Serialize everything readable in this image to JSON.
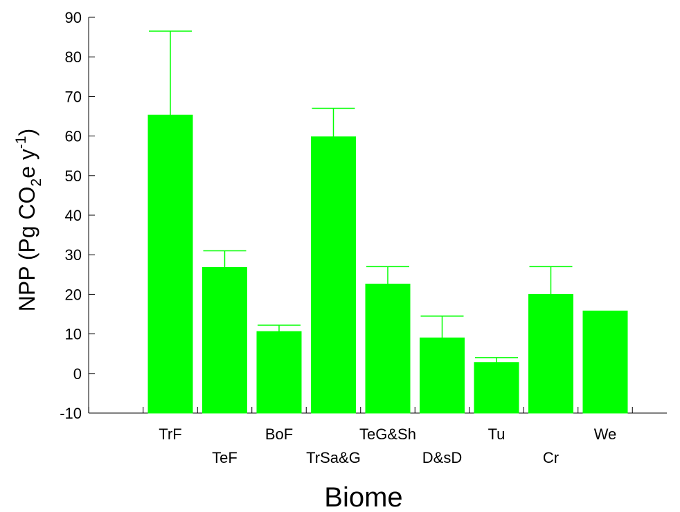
{
  "chart_data": {
    "type": "bar",
    "xlabel": "Biome",
    "ylabel": {
      "base": "NPP (Pg CO",
      "sub": "2",
      "mid": "e y",
      "sup": "-1",
      "end": ")"
    },
    "ylim": [
      -10,
      90
    ],
    "yticks": [
      -10,
      0,
      10,
      20,
      30,
      40,
      50,
      60,
      70,
      80,
      90
    ],
    "categories": [
      "TrF",
      "TeF",
      "BoF",
      "TrSa&G",
      "TeG&Sh",
      "D&sD",
      "Tu",
      "Cr",
      "We"
    ],
    "values": [
      65.3,
      26.8,
      10.6,
      59.8,
      22.6,
      9.0,
      2.8,
      20.0,
      15.8
    ],
    "error_upper": [
      86.5,
      31.0,
      12.2,
      67.0,
      27.0,
      14.5,
      4.0,
      27.0,
      null
    ],
    "bar_color": "#00ff00",
    "error_color": "#00ff00",
    "grid": false
  }
}
